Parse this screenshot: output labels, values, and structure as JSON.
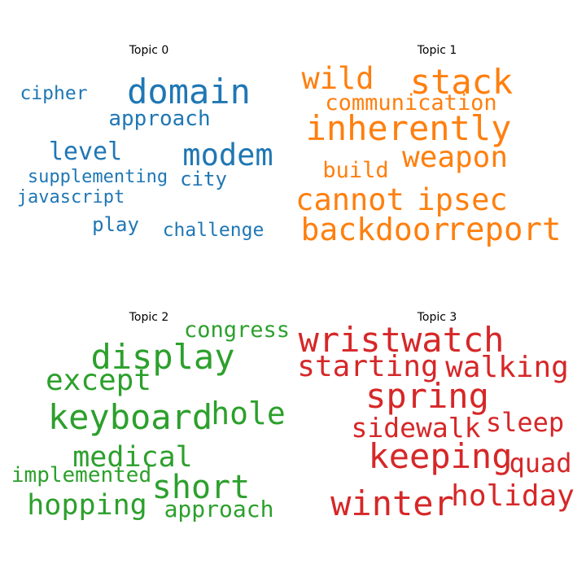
{
  "chart_data": [
    {
      "type": "wordcloud",
      "title": "Topic 0",
      "color": "#1f77b4",
      "words": [
        {
          "text": "domain",
          "weight": 1.0
        },
        {
          "text": "modem",
          "weight": 0.88
        },
        {
          "text": "level",
          "weight": 0.72
        },
        {
          "text": "approach",
          "weight": 0.62
        },
        {
          "text": "play",
          "weight": 0.58
        },
        {
          "text": "city",
          "weight": 0.56
        },
        {
          "text": "cipher",
          "weight": 0.55
        },
        {
          "text": "challenge",
          "weight": 0.54
        },
        {
          "text": "supplementing",
          "weight": 0.53
        },
        {
          "text": "javascript",
          "weight": 0.52
        }
      ]
    },
    {
      "type": "wordcloud",
      "title": "Topic 1",
      "color": "#ff7f0e",
      "words": [
        {
          "text": "stack",
          "weight": 1.0
        },
        {
          "text": "inherently",
          "weight": 1.0
        },
        {
          "text": "report",
          "weight": 0.92
        },
        {
          "text": "backdoor",
          "weight": 0.9
        },
        {
          "text": "wild",
          "weight": 0.88
        },
        {
          "text": "cannot",
          "weight": 0.88
        },
        {
          "text": "ipsec",
          "weight": 0.88
        },
        {
          "text": "weapon",
          "weight": 0.86
        },
        {
          "text": "communication",
          "weight": 0.64
        },
        {
          "text": "build",
          "weight": 0.64
        }
      ]
    },
    {
      "type": "wordcloud",
      "title": "Topic 2",
      "color": "#2ca02c",
      "words": [
        {
          "text": "display",
          "weight": 1.0
        },
        {
          "text": "keyboard",
          "weight": 1.0
        },
        {
          "text": "short",
          "weight": 0.95
        },
        {
          "text": "hole",
          "weight": 0.9
        },
        {
          "text": "except",
          "weight": 0.85
        },
        {
          "text": "medical",
          "weight": 0.84
        },
        {
          "text": "hopping",
          "weight": 0.84
        },
        {
          "text": "approach",
          "weight": 0.66
        },
        {
          "text": "congress",
          "weight": 0.64
        },
        {
          "text": "implemented",
          "weight": 0.62
        }
      ]
    },
    {
      "type": "wordcloud",
      "title": "Topic 3",
      "color": "#d62728",
      "words": [
        {
          "text": "wristwatch",
          "weight": 1.0
        },
        {
          "text": "spring",
          "weight": 1.0
        },
        {
          "text": "keeping",
          "weight": 1.0
        },
        {
          "text": "winter",
          "weight": 1.0
        },
        {
          "text": "starting",
          "weight": 0.85
        },
        {
          "text": "walking",
          "weight": 0.85
        },
        {
          "text": "holiday",
          "weight": 0.85
        },
        {
          "text": "sidewalk",
          "weight": 0.78
        },
        {
          "text": "sleep",
          "weight": 0.76
        },
        {
          "text": "quad",
          "weight": 0.76
        }
      ]
    }
  ]
}
